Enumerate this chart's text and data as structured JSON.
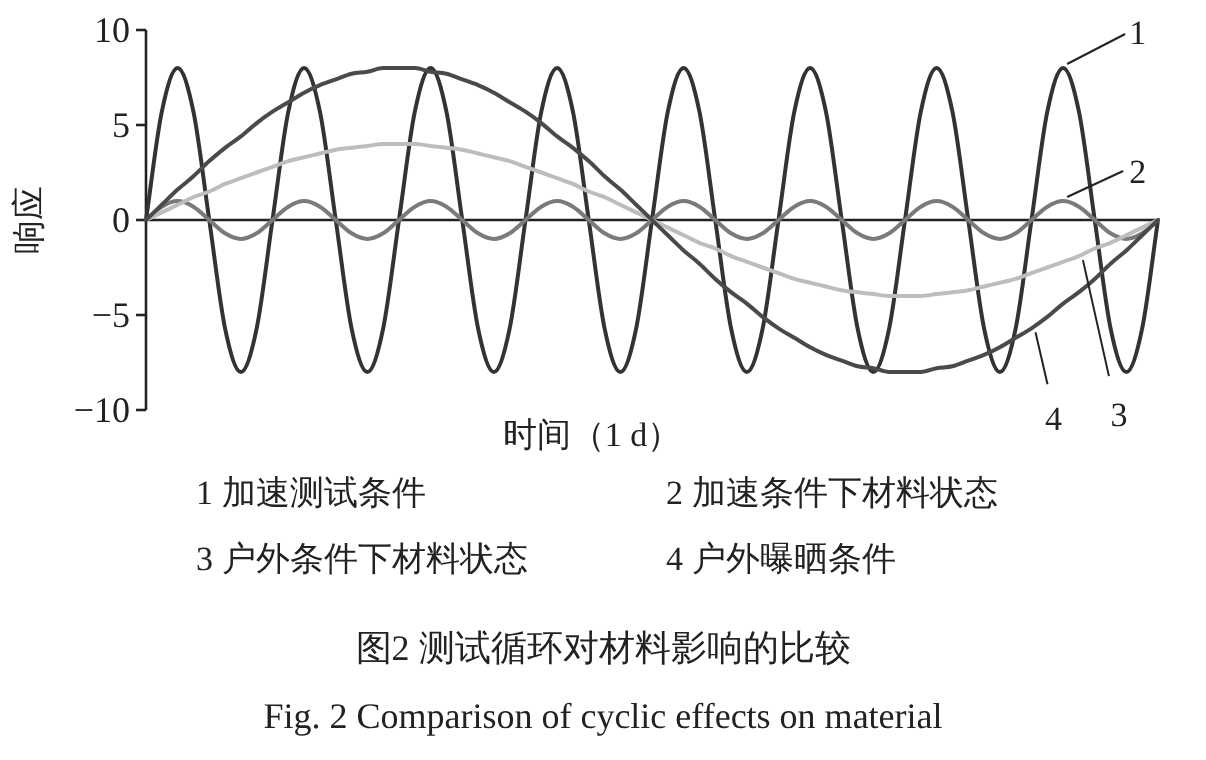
{
  "chart_data": {
    "type": "line",
    "title": "图2  测试循环对材料影响的比较",
    "subtitle": "Fig. 2  Comparison of cyclic effects on material",
    "xlabel": "时间（1 d）",
    "ylabel": "响应",
    "categories": [
      null,
      null,
      null,
      null,
      null,
      null,
      null,
      null,
      null,
      null,
      null,
      null,
      null,
      null,
      null,
      null,
      null,
      null,
      null,
      null,
      null,
      null,
      null,
      null,
      null,
      null,
      null,
      null,
      null,
      null,
      null,
      null,
      null,
      null,
      null,
      null,
      null,
      null,
      null,
      null,
      null,
      null,
      null,
      null,
      null,
      null,
      null,
      null,
      null,
      null,
      null,
      null,
      null,
      null,
      null,
      null,
      null,
      null,
      null,
      null,
      null,
      null,
      null,
      null,
      null
    ],
    "series": [
      {
        "name": "1",
        "color": "#333333",
        "values": [
          0,
          5.7,
          8,
          5.7,
          0,
          -5.7,
          -8,
          -5.7,
          0,
          5.7,
          8,
          5.7,
          0,
          -5.7,
          -8,
          -5.7,
          0,
          5.7,
          8,
          5.7,
          0,
          -5.7,
          -8,
          -5.7,
          0,
          5.7,
          8,
          5.7,
          0,
          -5.7,
          -8,
          -5.7,
          0,
          5.7,
          8,
          5.7,
          0,
          -5.7,
          -8,
          -5.7,
          0,
          5.7,
          8,
          5.7,
          0,
          -5.7,
          -8,
          -5.7,
          0,
          5.7,
          8,
          5.7,
          0,
          -5.7,
          -8,
          -5.7,
          0,
          5.7,
          8,
          5.7,
          0,
          -5.7,
          -8,
          -5.7,
          0
        ]
      },
      {
        "name": "2",
        "color": "#7a7a7a",
        "values": [
          0,
          0.7,
          1,
          0.7,
          0,
          -0.7,
          -1,
          -0.7,
          0,
          0.7,
          1,
          0.7,
          0,
          -0.7,
          -1,
          -0.7,
          0,
          0.7,
          1,
          0.7,
          0,
          -0.7,
          -1,
          -0.7,
          0,
          0.7,
          1,
          0.7,
          0,
          -0.7,
          -1,
          -0.7,
          0,
          0.7,
          1,
          0.7,
          0,
          -0.7,
          -1,
          -0.7,
          0,
          0.7,
          1,
          0.7,
          0,
          -0.7,
          -1,
          -0.7,
          0,
          0.7,
          1,
          0.7,
          0,
          -0.7,
          -1,
          -0.7,
          0,
          0.7,
          1,
          0.7,
          0,
          -0.7,
          -1,
          -0.7,
          0
        ]
      },
      {
        "name": "3",
        "color": "#bdbdbd",
        "values": [
          0,
          0.4,
          0.8,
          1.2,
          1.5,
          1.9,
          2.2,
          2.5,
          2.8,
          3.1,
          3.3,
          3.5,
          3.7,
          3.8,
          3.9,
          4,
          4,
          4,
          3.9,
          3.8,
          3.7,
          3.5,
          3.3,
          3.1,
          2.8,
          2.5,
          2.2,
          1.9,
          1.5,
          1.2,
          0.8,
          0.4,
          0,
          -0.4,
          -0.8,
          -1.2,
          -1.5,
          -1.9,
          -2.2,
          -2.5,
          -2.8,
          -3.1,
          -3.3,
          -3.5,
          -3.7,
          -3.8,
          -3.9,
          -4,
          -4,
          -4,
          -3.9,
          -3.8,
          -3.7,
          -3.5,
          -3.3,
          -3.1,
          -2.8,
          -2.5,
          -2.2,
          -1.9,
          -1.5,
          -1.2,
          -0.8,
          -0.4,
          0
        ]
      },
      {
        "name": "4",
        "color": "#4a4a4a",
        "values": [
          0,
          0.8,
          1.6,
          2.3,
          3.1,
          3.8,
          4.4,
          5.1,
          5.7,
          6.2,
          6.7,
          7.1,
          7.4,
          7.7,
          7.8,
          8,
          8,
          8,
          7.8,
          7.7,
          7.4,
          7.1,
          6.7,
          6.2,
          5.7,
          5.1,
          4.4,
          3.8,
          3.1,
          2.3,
          1.6,
          0.8,
          0,
          -0.8,
          -1.6,
          -2.3,
          -3.1,
          -3.8,
          -4.4,
          -5.1,
          -5.7,
          -6.2,
          -6.7,
          -7.1,
          -7.4,
          -7.7,
          -7.8,
          -8,
          -8,
          -8,
          -7.8,
          -7.7,
          -7.4,
          -7.1,
          -6.7,
          -6.2,
          -5.7,
          -5.1,
          -4.4,
          -3.8,
          -3.1,
          -2.3,
          -1.6,
          -0.8,
          0
        ]
      }
    ],
    "annotations": [
      "1  加速测试条件",
      "2  加速条件下材料状态",
      "3  户外条件下材料状态",
      "4  户外曝晒条件"
    ],
    "ylim": [
      -10,
      10
    ],
    "yticks": [
      -10,
      -5,
      0,
      5,
      10
    ],
    "tick_labels": "y",
    "legend": "bottom"
  }
}
